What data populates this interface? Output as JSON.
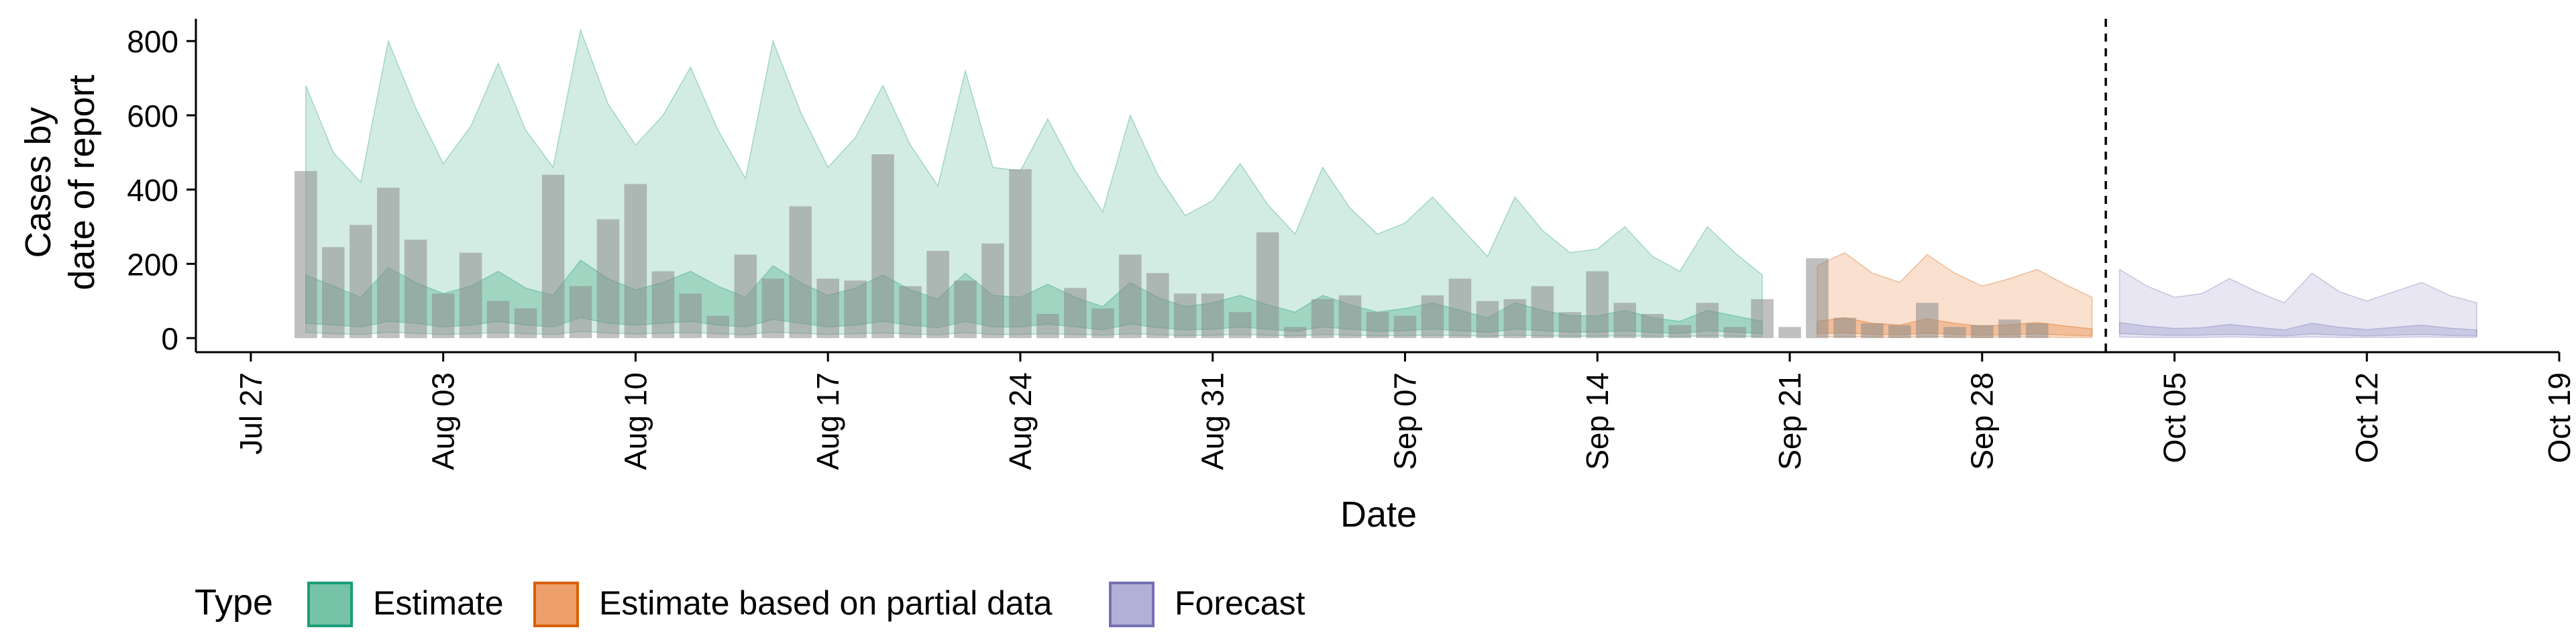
{
  "chart_data": {
    "type": "area",
    "xlabel": "Date",
    "ylabel_lines": [
      "Cases by",
      "date of report"
    ],
    "ylim": [
      0,
      860
    ],
    "yticks": [
      0,
      200,
      400,
      600,
      800
    ],
    "xlim": [
      "2020-07-25",
      "2020-10-19"
    ],
    "xticks": [
      {
        "date": "2020-07-27",
        "label": "Jul 27"
      },
      {
        "date": "2020-08-03",
        "label": "Aug 03"
      },
      {
        "date": "2020-08-10",
        "label": "Aug 10"
      },
      {
        "date": "2020-08-17",
        "label": "Aug 17"
      },
      {
        "date": "2020-08-24",
        "label": "Aug 24"
      },
      {
        "date": "2020-08-31",
        "label": "Aug 31"
      },
      {
        "date": "2020-09-07",
        "label": "Sep 07"
      },
      {
        "date": "2020-09-14",
        "label": "Sep 14"
      },
      {
        "date": "2020-09-21",
        "label": "Sep 21"
      },
      {
        "date": "2020-09-28",
        "label": "Sep 28"
      },
      {
        "date": "2020-10-05",
        "label": "Oct 05"
      },
      {
        "date": "2020-10-12",
        "label": "Oct 12"
      },
      {
        "date": "2020-10-19",
        "label": "Oct 19"
      }
    ],
    "forecast_date": "2020-10-02",
    "observed": {
      "start": "2020-07-29",
      "values": [
        450,
        245,
        305,
        405,
        265,
        120,
        230,
        100,
        80,
        440,
        140,
        320,
        415,
        180,
        120,
        60,
        225,
        160,
        355,
        160,
        155,
        495,
        140,
        235,
        155,
        255,
        455,
        65,
        135,
        80,
        225,
        175,
        120,
        120,
        70,
        285,
        30,
        105,
        115,
        70,
        60,
        115,
        160,
        100,
        105,
        140,
        70,
        180,
        95,
        65,
        35,
        95,
        30,
        105,
        30,
        215,
        55,
        40,
        35,
        95,
        30,
        35,
        50,
        40
      ]
    },
    "series": [
      {
        "name": "Estimate",
        "color": "#1b9e77",
        "fill": "#76c3a8",
        "start": "2020-07-29",
        "upper": [
          680,
          500,
          420,
          800,
          620,
          470,
          570,
          740,
          560,
          460,
          830,
          630,
          520,
          600,
          730,
          560,
          430,
          800,
          610,
          460,
          540,
          680,
          520,
          410,
          720,
          460,
          450,
          590,
          450,
          340,
          600,
          440,
          330,
          370,
          470,
          360,
          280,
          460,
          350,
          280,
          310,
          380,
          300,
          220,
          380,
          290,
          230,
          240,
          300,
          220,
          180,
          300,
          230,
          170
        ],
        "mid_upper": [
          170,
          140,
          110,
          190,
          150,
          120,
          140,
          180,
          135,
          115,
          210,
          160,
          130,
          150,
          180,
          140,
          110,
          195,
          150,
          115,
          135,
          170,
          130,
          105,
          175,
          115,
          110,
          145,
          110,
          85,
          150,
          110,
          85,
          95,
          115,
          90,
          70,
          115,
          90,
          70,
          80,
          95,
          75,
          55,
          95,
          75,
          60,
          60,
          75,
          55,
          45,
          75,
          60,
          45
        ],
        "mid_lower": [
          40,
          35,
          30,
          45,
          40,
          30,
          35,
          45,
          35,
          30,
          55,
          40,
          35,
          40,
          45,
          35,
          30,
          50,
          40,
          30,
          35,
          45,
          35,
          28,
          45,
          30,
          30,
          38,
          30,
          22,
          38,
          28,
          22,
          24,
          30,
          24,
          18,
          30,
          24,
          18,
          20,
          24,
          20,
          15,
          24,
          20,
          16,
          16,
          20,
          15,
          12,
          20,
          16,
          12
        ],
        "lower": [
          15,
          12,
          10,
          16,
          13,
          10,
          12,
          15,
          12,
          10,
          18,
          14,
          11,
          13,
          15,
          12,
          9,
          16,
          13,
          10,
          12,
          14,
          11,
          9,
          15,
          10,
          10,
          12,
          10,
          8,
          12,
          9,
          7,
          8,
          10,
          8,
          6,
          10,
          8,
          6,
          7,
          8,
          7,
          5,
          8,
          6,
          5,
          5,
          6,
          5,
          4,
          6,
          5,
          4
        ]
      },
      {
        "name": "Estimate based on partial data",
        "color": "#d95f02",
        "fill": "#eda06a",
        "start": "2020-09-22",
        "upper": [
          195,
          230,
          175,
          150,
          225,
          175,
          140,
          160,
          185,
          145,
          110
        ],
        "mid_upper": [
          45,
          55,
          40,
          35,
          52,
          40,
          32,
          36,
          42,
          33,
          25
        ],
        "mid_lower": [
          12,
          14,
          10,
          9,
          13,
          10,
          8,
          9,
          11,
          8,
          6
        ],
        "lower": [
          3,
          4,
          3,
          2,
          4,
          3,
          2,
          3,
          3,
          2,
          2
        ]
      },
      {
        "name": "Forecast",
        "color": "#7570b3",
        "fill": "#b3b0d8",
        "start": "2020-10-03",
        "upper": [
          185,
          140,
          110,
          120,
          160,
          125,
          95,
          175,
          125,
          100,
          125,
          150,
          115,
          95
        ],
        "mid_upper": [
          42,
          32,
          26,
          28,
          37,
          29,
          22,
          40,
          29,
          23,
          29,
          35,
          27,
          22
        ],
        "mid_lower": [
          12,
          9,
          7,
          8,
          10,
          8,
          6,
          11,
          8,
          6,
          8,
          10,
          7,
          6
        ],
        "lower": [
          3,
          2,
          2,
          2,
          3,
          2,
          2,
          3,
          2,
          2,
          2,
          3,
          2,
          2
        ]
      }
    ],
    "legend": {
      "title": "Type",
      "placement": "bottom-left",
      "items": [
        "Estimate",
        "Estimate based on partial data",
        "Forecast"
      ]
    },
    "grid": false
  }
}
